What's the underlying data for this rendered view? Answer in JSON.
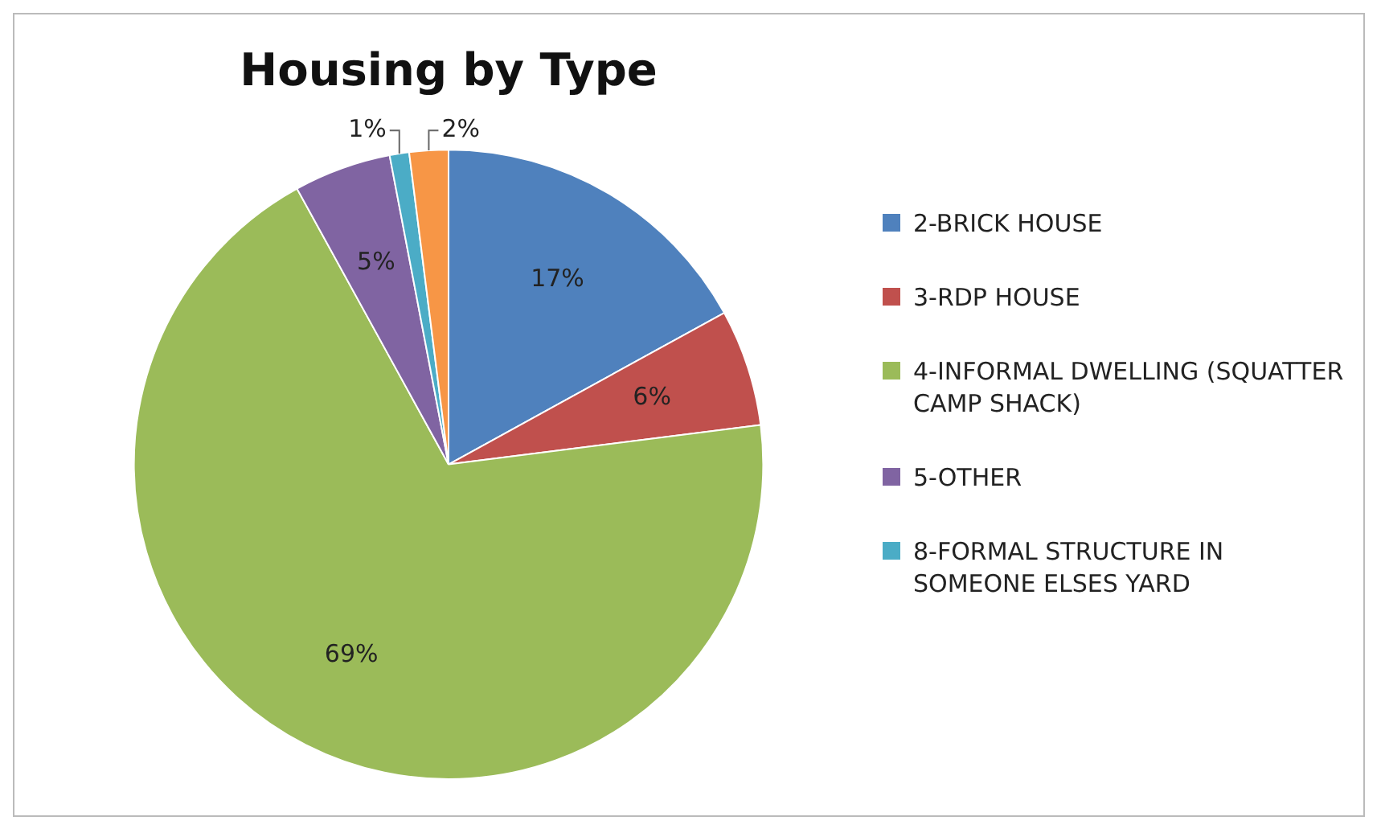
{
  "chart_data": {
    "type": "pie",
    "title": "Housing by Type",
    "categories": [
      "2-BRICK HOUSE",
      "3-RDP HOUSE",
      "4-INFORMAL DWELLING (SQUATTER CAMP SHACK)",
      "5-OTHER",
      "8-FORMAL STRUCTURE IN SOMEONE ELSES YARD",
      null
    ],
    "values": [
      17,
      6,
      69,
      5,
      1,
      2
    ],
    "colors": [
      "#4f81bd",
      "#c0504d",
      "#9bbb59",
      "#8064a2",
      "#4bacc6",
      "#f79646"
    ],
    "value_labels": [
      "17%",
      "6%",
      "69%",
      "5%",
      "1%",
      "2%"
    ],
    "legend": "right"
  }
}
